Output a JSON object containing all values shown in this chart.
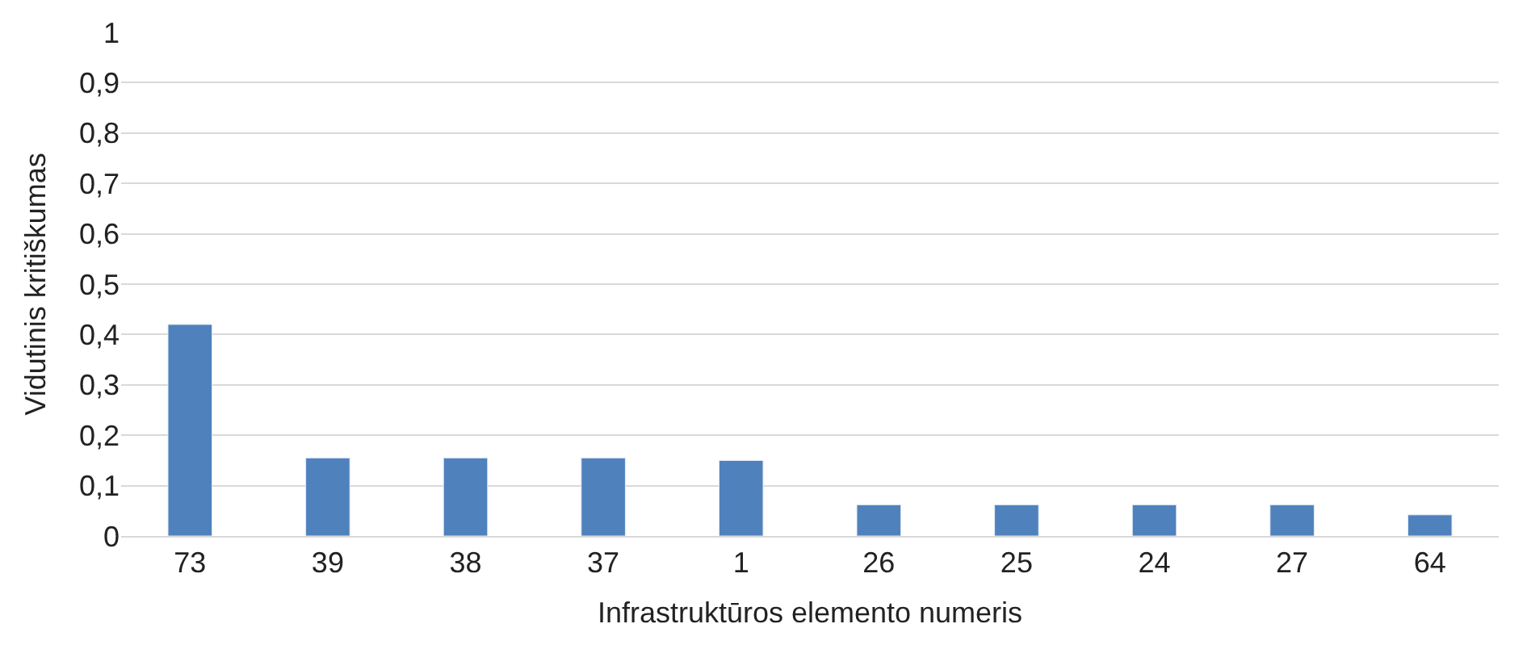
{
  "chart_data": {
    "type": "bar",
    "xlabel": "Infrastruktūros elemento numeris",
    "ylabel": "Vidutinis kritiškumas",
    "categories": [
      "73",
      "39",
      "38",
      "37",
      "1",
      "26",
      "25",
      "24",
      "27",
      "64"
    ],
    "values": [
      0.42,
      0.155,
      0.155,
      0.155,
      0.15,
      0.062,
      0.062,
      0.062,
      0.062,
      0.042
    ],
    "color": "#4f81bd",
    "ylim": [
      0,
      1
    ],
    "yticks": [
      0,
      {
        "value": 0.1,
        "label": "0,1"
      },
      {
        "value": 0.2,
        "label": "0,2"
      },
      {
        "value": 0.3,
        "label": "0,3"
      },
      {
        "value": 0.4,
        "label": "0,4"
      },
      {
        "value": 0.5,
        "label": "0,5"
      },
      {
        "value": 0.6,
        "label": "0,6"
      },
      {
        "value": 0.7,
        "label": "0,7"
      },
      {
        "value": 0.8,
        "label": "0,8"
      },
      {
        "value": 0.9,
        "label": "0,9"
      },
      1
    ],
    "grid": "y",
    "legend": false
  }
}
